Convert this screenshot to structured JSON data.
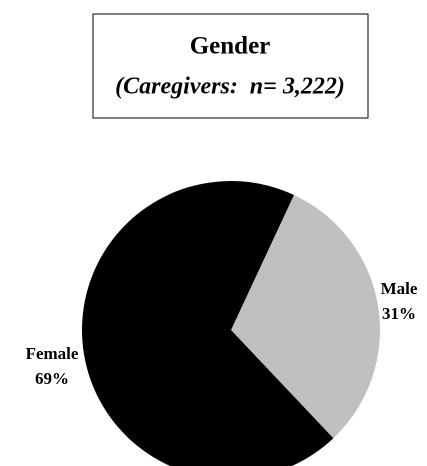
{
  "chart_data": {
    "type": "pie",
    "title": "Gender",
    "subtitle": "(Caregivers:  n= 3,222)",
    "categories": [
      "Male",
      "Female"
    ],
    "values": [
      31,
      69
    ],
    "value_labels": [
      "31%",
      "69%"
    ],
    "colors": [
      "#c0c0c0",
      "#000000"
    ]
  }
}
